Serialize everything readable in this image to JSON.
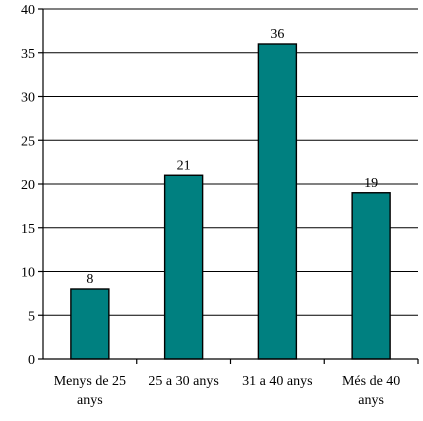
{
  "chart_data": {
    "type": "bar",
    "title": "",
    "xlabel": "",
    "ylabel": "",
    "categories": [
      [
        "Menys de 25",
        "anys"
      ],
      [
        "25 a 30 anys"
      ],
      [
        "31 a 40 anys"
      ],
      [
        "Més de 40",
        "anys"
      ]
    ],
    "values": [
      8,
      21,
      36,
      19
    ],
    "data_labels": [
      "8",
      "21",
      "36",
      "19"
    ],
    "ylim": [
      0,
      40
    ],
    "yticks": [
      "0",
      "5",
      "10",
      "15",
      "20",
      "25",
      "30",
      "35",
      "40"
    ],
    "grid": true,
    "legend": "none",
    "colors": {
      "bar": "#008080",
      "outline": "#000000",
      "grid": "#000000"
    }
  }
}
